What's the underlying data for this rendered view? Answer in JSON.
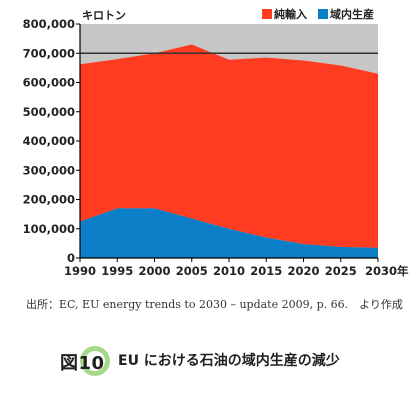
{
  "chart_data": {
    "type": "area",
    "stacked": true,
    "unit_label": "キロトン",
    "x": [
      1990,
      1995,
      2000,
      2005,
      2010,
      2015,
      2020,
      2025,
      2030
    ],
    "x_tick_labels": [
      "1990",
      "1995",
      "2000",
      "2005",
      "2010",
      "2015",
      "2020",
      "2025",
      "2030年"
    ],
    "ylim": [
      0,
      800000
    ],
    "y_ticks": [
      0,
      100000,
      200000,
      300000,
      400000,
      500000,
      600000,
      700000,
      800000
    ],
    "y_tick_labels": [
      "0",
      "100,000",
      "200,000",
      "300,000",
      "400,000",
      "500,000",
      "600,000",
      "700,000",
      "800,000"
    ],
    "reference_line": 700000,
    "series": [
      {
        "name": "域内生産",
        "color": "#0a7fc7",
        "values": [
          125000,
          170000,
          170000,
          135000,
          100000,
          70000,
          48000,
          38000,
          35000
        ]
      },
      {
        "name": "純輸入",
        "color": "#ff3b22",
        "values": [
          537000,
          510000,
          530000,
          595000,
          578000,
          615000,
          627000,
          620000,
          595000
        ]
      }
    ],
    "legend": {
      "position": "top-right",
      "order": [
        "純輸入",
        "域内生産"
      ]
    },
    "plot_background": "#c7c7c7"
  },
  "source_text": "出所：EC, EU energy trends to 2030 – update 2009, p. 66.　より作成",
  "figure": {
    "number": "図10",
    "title": "EU における石油の域内生産の減少"
  }
}
